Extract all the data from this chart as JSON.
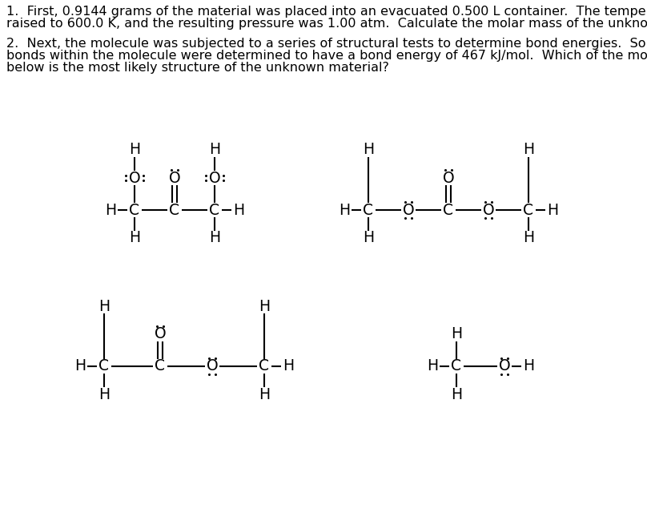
{
  "background_color": "#ffffff",
  "text_color": "#000000",
  "q1_line1": "1.  First, 0.9144 grams of the material was placed into an evacuated 0.500 L container.  The temperature was",
  "q1_line2": "raised to 600.0 K, and the resulting pressure was 1.00 atm.  Calculate the molar mass of the unknown material?",
  "q2_line1": "2.  Next, the molecule was subjected to a series of structural tests to determine bond energies.  Some of the",
  "q2_line2": "bonds within the molecule were determined to have a bond energy of 467 kJ/mol.  Which of the molecules",
  "q2_line3": "below is the most likely structure of the unknown material?",
  "font_size_text": 11.5,
  "font_size_atom": 13.5,
  "figsize": [
    8.08,
    6.55
  ],
  "dpi": 100
}
